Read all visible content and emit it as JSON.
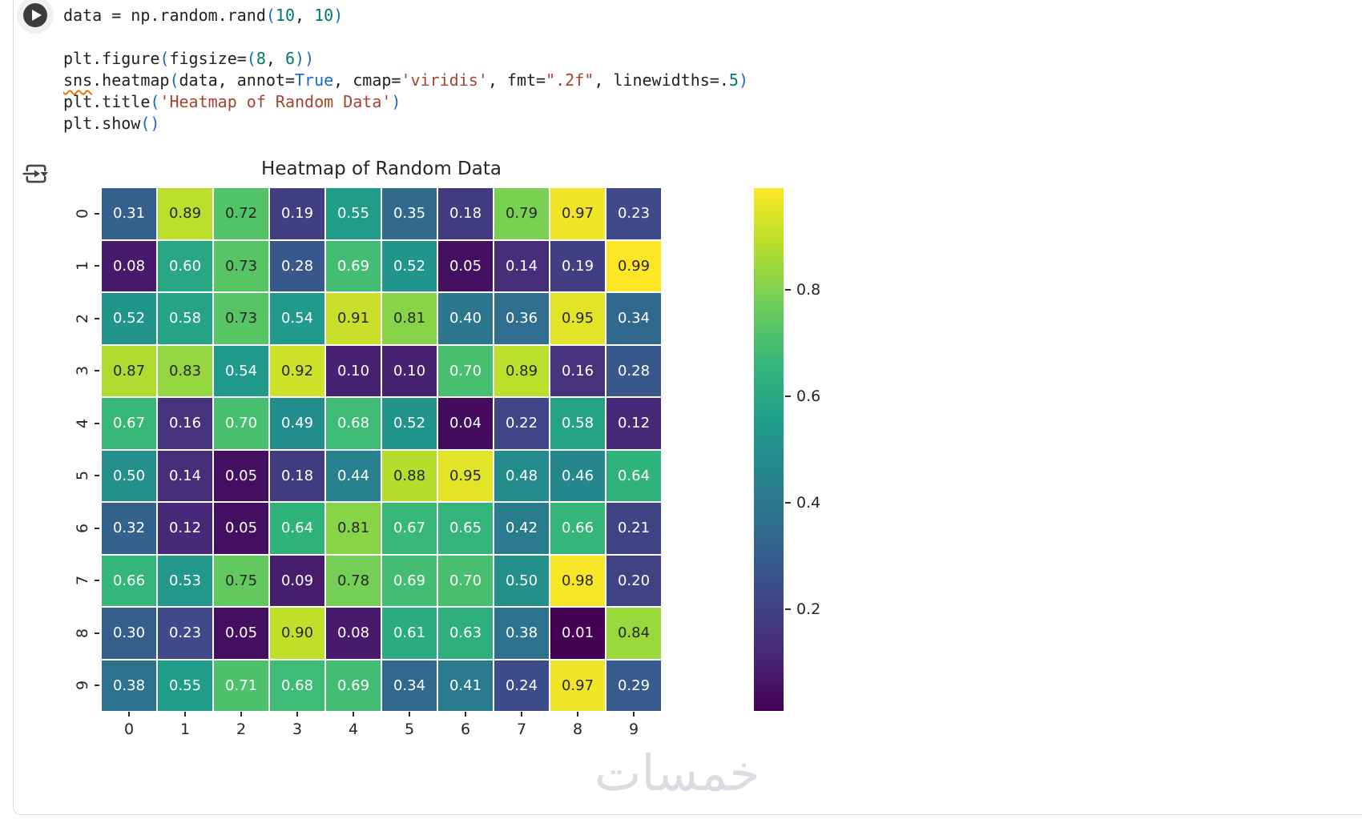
{
  "cell": {
    "run_button": "run-cell",
    "output_toolbar": "output-options"
  },
  "code": {
    "lines": [
      [
        {
          "t": "data = np.random.rand",
          "s": "p"
        },
        {
          "t": "(",
          "s": "b"
        },
        {
          "t": "10",
          "s": "n"
        },
        {
          "t": ", ",
          "s": "p"
        },
        {
          "t": "10",
          "s": "n"
        },
        {
          "t": ")",
          "s": "b"
        }
      ],
      [],
      [
        {
          "t": "plt.figure",
          "s": "p"
        },
        {
          "t": "(",
          "s": "b"
        },
        {
          "t": "figsize=",
          "s": "p"
        },
        {
          "t": "(",
          "s": "b"
        },
        {
          "t": "8",
          "s": "n"
        },
        {
          "t": ", ",
          "s": "p"
        },
        {
          "t": "6",
          "s": "n"
        },
        {
          "t": "))",
          "s": "b"
        }
      ],
      [
        {
          "t": "sns",
          "s": "w"
        },
        {
          "t": ".heatmap",
          "s": "p"
        },
        {
          "t": "(",
          "s": "b"
        },
        {
          "t": "data, annot=",
          "s": "p"
        },
        {
          "t": "True",
          "s": "k"
        },
        {
          "t": ", cmap=",
          "s": "p"
        },
        {
          "t": "'viridis'",
          "s": "s"
        },
        {
          "t": ", fmt=",
          "s": "p"
        },
        {
          "t": "\".2f\"",
          "s": "s"
        },
        {
          "t": ", linewidths=.",
          "s": "p"
        },
        {
          "t": "5",
          "s": "n"
        },
        {
          "t": ")",
          "s": "b"
        }
      ],
      [
        {
          "t": "plt.title",
          "s": "p"
        },
        {
          "t": "(",
          "s": "b"
        },
        {
          "t": "'Heatmap of Random Data'",
          "s": "s"
        },
        {
          "t": ")",
          "s": "b"
        }
      ],
      [
        {
          "t": "plt.show",
          "s": "p"
        },
        {
          "t": "()",
          "s": "b"
        }
      ]
    ]
  },
  "chart_data": {
    "type": "heatmap",
    "title": "Heatmap of Random Data",
    "xlabel": "",
    "ylabel": "",
    "x_tick_labels": [
      "0",
      "1",
      "2",
      "3",
      "4",
      "5",
      "6",
      "7",
      "8",
      "9"
    ],
    "y_tick_labels": [
      "0",
      "1",
      "2",
      "3",
      "4",
      "5",
      "6",
      "7",
      "8",
      "9"
    ],
    "values": [
      [
        0.31,
        0.89,
        0.72,
        0.19,
        0.55,
        0.35,
        0.18,
        0.79,
        0.97,
        0.23
      ],
      [
        0.08,
        0.6,
        0.73,
        0.28,
        0.69,
        0.52,
        0.05,
        0.14,
        0.19,
        0.99
      ],
      [
        0.52,
        0.58,
        0.73,
        0.54,
        0.91,
        0.81,
        0.4,
        0.36,
        0.95,
        0.34
      ],
      [
        0.87,
        0.83,
        0.54,
        0.92,
        0.1,
        0.1,
        0.7,
        0.89,
        0.16,
        0.28
      ],
      [
        0.67,
        0.16,
        0.7,
        0.49,
        0.68,
        0.52,
        0.04,
        0.22,
        0.58,
        0.12
      ],
      [
        0.5,
        0.14,
        0.05,
        0.18,
        0.44,
        0.88,
        0.95,
        0.48,
        0.46,
        0.64
      ],
      [
        0.32,
        0.12,
        0.05,
        0.64,
        0.81,
        0.67,
        0.65,
        0.42,
        0.66,
        0.21
      ],
      [
        0.66,
        0.53,
        0.75,
        0.09,
        0.78,
        0.69,
        0.7,
        0.5,
        0.98,
        0.2
      ],
      [
        0.3,
        0.23,
        0.05,
        0.9,
        0.08,
        0.61,
        0.63,
        0.38,
        0.01,
        0.84
      ],
      [
        0.38,
        0.55,
        0.71,
        0.68,
        0.69,
        0.34,
        0.41,
        0.24,
        0.97,
        0.29
      ]
    ],
    "annot": true,
    "fmt": ".2f",
    "cmap": "viridis",
    "vmin": 0.01,
    "vmax": 0.99,
    "gridline_color": "#ffffff",
    "colorbar": {
      "position": "right",
      "ticks": [
        0.2,
        0.4,
        0.6,
        0.8
      ]
    },
    "viridis_stops": [
      "#440154",
      "#482878",
      "#3e4989",
      "#31688e",
      "#26828e",
      "#1f9e89",
      "#35b779",
      "#6ece58",
      "#b5de2b",
      "#fde725"
    ],
    "annot_dark_color": "#262626",
    "annot_light_color": "#ffffff"
  },
  "watermark": {
    "text": "خمسات"
  },
  "colors": {
    "run_button": "#3c3c3c",
    "cell_border": "#d8d8d8",
    "code_plain": "#212121",
    "code_bracket": "#1967d2",
    "code_number": "#00796b",
    "code_string": "#a5432d",
    "code_wavy_underline": "#e8710a",
    "tick_mark": "#2b2b2b",
    "watermark_gray": "#d9dce1",
    "icon_gray": "#454545"
  }
}
